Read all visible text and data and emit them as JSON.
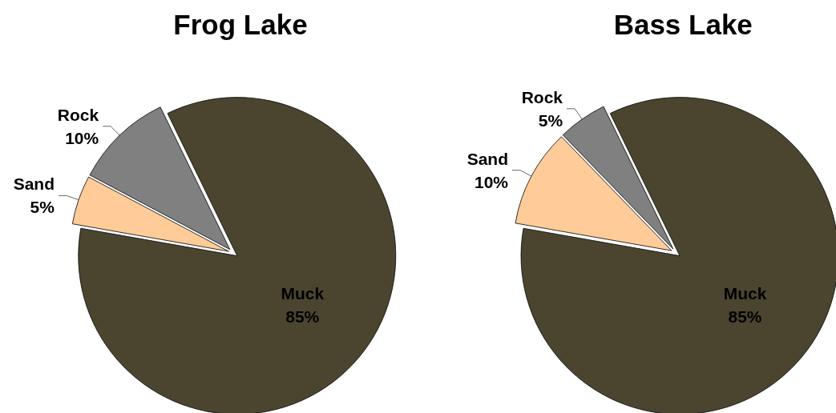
{
  "chart_data": [
    {
      "type": "pie",
      "title": "Frog Lake",
      "categories": [
        "Muck",
        "Sand",
        "Rock"
      ],
      "values": [
        85,
        5,
        10
      ],
      "value_labels": [
        "85%",
        "5%",
        "10%"
      ],
      "colors": [
        "#4b4530",
        "#ffcc99",
        "#808080"
      ]
    },
    {
      "type": "pie",
      "title": "Bass Lake",
      "categories": [
        "Muck",
        "Sand",
        "Rock"
      ],
      "values": [
        85,
        10,
        5
      ],
      "value_labels": [
        "85%",
        "10%",
        "5%"
      ],
      "colors": [
        "#4b4530",
        "#ffcc99",
        "#808080"
      ]
    }
  ]
}
